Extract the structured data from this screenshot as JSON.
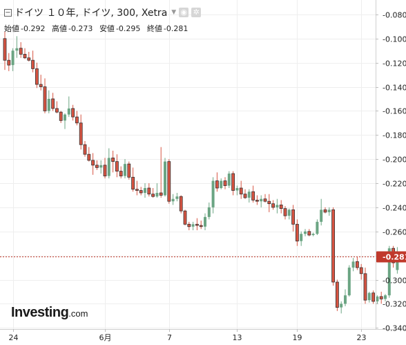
{
  "header": {
    "title": "ドイツ １０年, ドイツ, 300, Xetra",
    "ohlc": [
      {
        "label": "始値",
        "value": "-0.292"
      },
      {
        "label": "高値",
        "value": "-0.273"
      },
      {
        "label": "安値",
        "value": "-0.295"
      },
      {
        "label": "終値",
        "value": "-0.281"
      }
    ]
  },
  "logo": {
    "main": "Investing",
    "suffix": ".com"
  },
  "colors": {
    "up": "#6ba583",
    "down": "#d75442",
    "price_line": "#c0392b",
    "grid": "#eeeeee"
  },
  "chart_data": {
    "type": "candlestick",
    "title": "ドイツ １０年, ドイツ, 300, Xetra",
    "y_ticks": [
      "-0.080",
      "-0.100",
      "-0.120",
      "-0.140",
      "-0.160",
      "-0.180",
      "-0.200",
      "-0.220",
      "-0.240",
      "-0.260",
      "-0.280",
      "-0.300",
      "-0.320",
      "-0.340"
    ],
    "ylim": [
      -0.341,
      -0.068
    ],
    "x_ticks": [
      "24",
      "6月",
      "7",
      "13",
      "19",
      "23"
    ],
    "last_price_label": "-0.281",
    "last_price": -0.281,
    "grid": true,
    "candles": [
      [
        -0.1,
        -0.094,
        -0.126,
        -0.118
      ],
      [
        -0.118,
        -0.112,
        -0.127,
        -0.122
      ],
      [
        -0.122,
        -0.108,
        -0.127,
        -0.11
      ],
      [
        -0.11,
        -0.098,
        -0.116,
        -0.108
      ],
      [
        -0.108,
        -0.103,
        -0.116,
        -0.113
      ],
      [
        -0.113,
        -0.108,
        -0.117,
        -0.116
      ],
      [
        -0.116,
        -0.111,
        -0.119,
        -0.118
      ],
      [
        -0.118,
        -0.11,
        -0.128,
        -0.125
      ],
      [
        -0.125,
        -0.12,
        -0.141,
        -0.138
      ],
      [
        -0.138,
        -0.13,
        -0.143,
        -0.14
      ],
      [
        -0.14,
        -0.133,
        -0.162,
        -0.16
      ],
      [
        -0.16,
        -0.143,
        -0.162,
        -0.15
      ],
      [
        -0.15,
        -0.145,
        -0.16,
        -0.158
      ],
      [
        -0.158,
        -0.152,
        -0.162,
        -0.161
      ],
      [
        -0.161,
        -0.16,
        -0.17,
        -0.168
      ],
      [
        -0.168,
        -0.162,
        -0.175,
        -0.163
      ],
      [
        -0.163,
        -0.148,
        -0.165,
        -0.158
      ],
      [
        -0.158,
        -0.155,
        -0.168,
        -0.165
      ],
      [
        -0.165,
        -0.16,
        -0.172,
        -0.17
      ],
      [
        -0.17,
        -0.163,
        -0.192,
        -0.188
      ],
      [
        -0.188,
        -0.185,
        -0.198,
        -0.196
      ],
      [
        -0.196,
        -0.19,
        -0.202,
        -0.201
      ],
      [
        -0.201,
        -0.195,
        -0.213,
        -0.205
      ],
      [
        -0.205,
        -0.201,
        -0.209,
        -0.207
      ],
      [
        -0.207,
        -0.201,
        -0.212,
        -0.205
      ],
      [
        -0.205,
        -0.199,
        -0.216,
        -0.214
      ],
      [
        -0.214,
        -0.191,
        -0.216,
        -0.199
      ],
      [
        -0.199,
        -0.193,
        -0.211,
        -0.202
      ],
      [
        -0.202,
        -0.196,
        -0.215,
        -0.21
      ],
      [
        -0.21,
        -0.206,
        -0.216,
        -0.214
      ],
      [
        -0.214,
        -0.2,
        -0.216,
        -0.204
      ],
      [
        -0.204,
        -0.202,
        -0.217,
        -0.215
      ],
      [
        -0.215,
        -0.207,
        -0.227,
        -0.225
      ],
      [
        -0.225,
        -0.218,
        -0.23,
        -0.226
      ],
      [
        -0.226,
        -0.223,
        -0.23,
        -0.228
      ],
      [
        -0.228,
        -0.22,
        -0.232,
        -0.224
      ],
      [
        -0.224,
        -0.22,
        -0.231,
        -0.229
      ],
      [
        -0.229,
        -0.224,
        -0.232,
        -0.231
      ],
      [
        -0.231,
        -0.22,
        -0.232,
        -0.228
      ],
      [
        -0.228,
        -0.19,
        -0.232,
        -0.23
      ],
      [
        -0.23,
        -0.199,
        -0.231,
        -0.202
      ],
      [
        -0.202,
        -0.2,
        -0.237,
        -0.235
      ],
      [
        -0.235,
        -0.229,
        -0.238,
        -0.233
      ],
      [
        -0.233,
        -0.228,
        -0.235,
        -0.231
      ],
      [
        -0.231,
        -0.23,
        -0.245,
        -0.243
      ],
      [
        -0.243,
        -0.242,
        -0.255,
        -0.254
      ],
      [
        -0.254,
        -0.252,
        -0.259,
        -0.256
      ],
      [
        -0.256,
        -0.252,
        -0.259,
        -0.254
      ],
      [
        -0.254,
        -0.249,
        -0.259,
        -0.255
      ],
      [
        -0.255,
        -0.251,
        -0.258,
        -0.256
      ],
      [
        -0.256,
        -0.245,
        -0.259,
        -0.248
      ],
      [
        -0.248,
        -0.236,
        -0.25,
        -0.24
      ],
      [
        -0.24,
        -0.215,
        -0.245,
        -0.218
      ],
      [
        -0.218,
        -0.211,
        -0.227,
        -0.224
      ],
      [
        -0.224,
        -0.216,
        -0.225,
        -0.218
      ],
      [
        -0.218,
        -0.215,
        -0.225,
        -0.222
      ],
      [
        -0.222,
        -0.21,
        -0.224,
        -0.212
      ],
      [
        -0.212,
        -0.21,
        -0.23,
        -0.226
      ],
      [
        -0.226,
        -0.222,
        -0.23,
        -0.224
      ],
      [
        -0.224,
        -0.218,
        -0.233,
        -0.229
      ],
      [
        -0.229,
        -0.225,
        -0.233,
        -0.232
      ],
      [
        -0.232,
        -0.225,
        -0.236,
        -0.227
      ],
      [
        -0.227,
        -0.222,
        -0.236,
        -0.234
      ],
      [
        -0.234,
        -0.23,
        -0.238,
        -0.235
      ],
      [
        -0.235,
        -0.23,
        -0.24,
        -0.233
      ],
      [
        -0.233,
        -0.229,
        -0.236,
        -0.235
      ],
      [
        -0.235,
        -0.229,
        -0.244,
        -0.237
      ],
      [
        -0.237,
        -0.234,
        -0.242,
        -0.24
      ],
      [
        -0.24,
        -0.233,
        -0.245,
        -0.238
      ],
      [
        -0.238,
        -0.234,
        -0.245,
        -0.241
      ],
      [
        -0.241,
        -0.239,
        -0.25,
        -0.247
      ],
      [
        -0.247,
        -0.241,
        -0.25,
        -0.242
      ],
      [
        -0.242,
        -0.238,
        -0.26,
        -0.254
      ],
      [
        -0.254,
        -0.25,
        -0.272,
        -0.268
      ],
      [
        -0.268,
        -0.26,
        -0.272,
        -0.262
      ],
      [
        -0.262,
        -0.258,
        -0.264,
        -0.26
      ],
      [
        -0.26,
        -0.258,
        -0.264,
        -0.263
      ],
      [
        -0.263,
        -0.261,
        -0.264,
        -0.262
      ],
      [
        -0.262,
        -0.25,
        -0.263,
        -0.252
      ],
      [
        -0.252,
        -0.233,
        -0.255,
        -0.242
      ],
      [
        -0.242,
        -0.24,
        -0.245,
        -0.244
      ],
      [
        -0.244,
        -0.24,
        -0.247,
        -0.242
      ],
      [
        -0.242,
        -0.24,
        -0.305,
        -0.302
      ],
      [
        -0.302,
        -0.3,
        -0.326,
        -0.323
      ],
      [
        -0.323,
        -0.318,
        -0.328,
        -0.32
      ],
      [
        -0.32,
        -0.308,
        -0.322,
        -0.313
      ],
      [
        -0.313,
        -0.288,
        -0.314,
        -0.29
      ],
      [
        -0.29,
        -0.282,
        -0.293,
        -0.285
      ],
      [
        -0.285,
        -0.281,
        -0.292,
        -0.29
      ],
      [
        -0.29,
        -0.287,
        -0.3,
        -0.295
      ],
      [
        -0.295,
        -0.29,
        -0.32,
        -0.317
      ],
      [
        -0.317,
        -0.31,
        -0.319,
        -0.311
      ],
      [
        -0.311,
        -0.309,
        -0.32,
        -0.318
      ],
      [
        -0.318,
        -0.313,
        -0.32,
        -0.314
      ],
      [
        -0.314,
        -0.31,
        -0.32,
        -0.316
      ],
      [
        -0.316,
        -0.312,
        -0.318,
        -0.313
      ],
      [
        -0.313,
        -0.272,
        -0.315,
        -0.274
      ],
      [
        -0.274,
        -0.272,
        -0.29,
        -0.286
      ],
      [
        -0.292,
        -0.273,
        -0.295,
        -0.281
      ]
    ]
  }
}
